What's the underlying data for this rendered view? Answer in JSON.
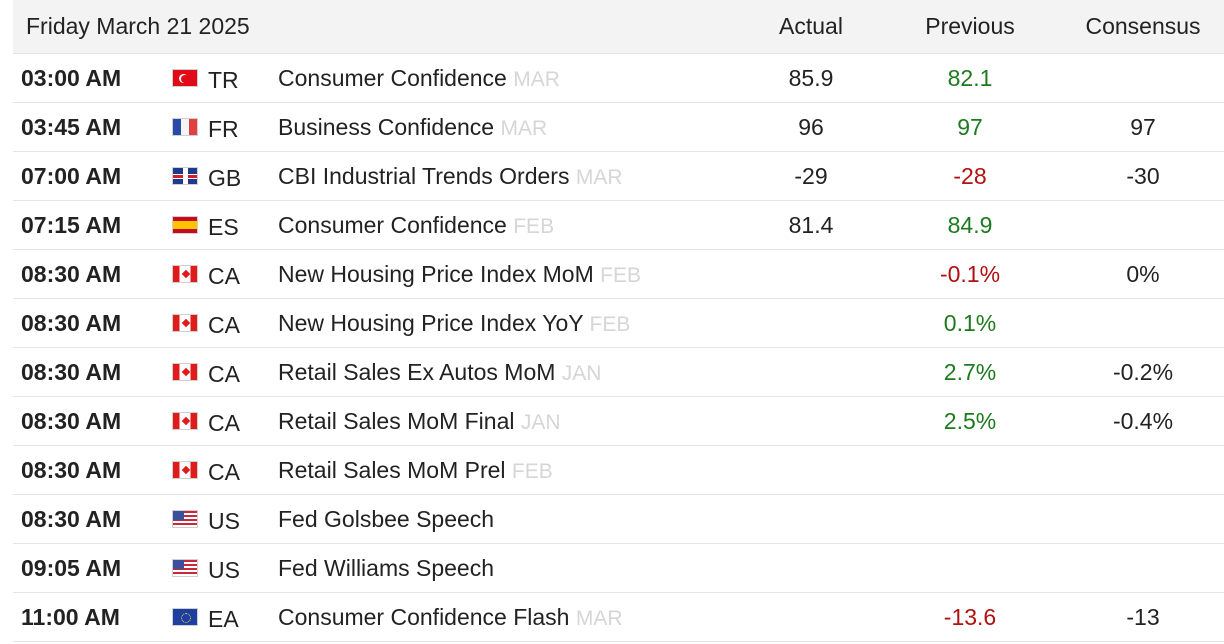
{
  "header": {
    "date": "Friday March 21 2025",
    "actual_label": "Actual",
    "previous_label": "Previous",
    "consensus_label": "Consensus"
  },
  "colors": {
    "up": "#1e7a1e",
    "down": "#b01010",
    "reference": "#d6d6d6"
  },
  "rows": [
    {
      "time": "03:00 AM",
      "flag": "turkey-flag-icon",
      "country": "TR",
      "event": "Consumer Confidence",
      "ref": "MAR",
      "actual": "85.9",
      "previous": "82.1",
      "previous_trend": "up",
      "consensus": ""
    },
    {
      "time": "03:45 AM",
      "flag": "france-flag-icon",
      "country": "FR",
      "event": "Business Confidence",
      "ref": "MAR",
      "actual": "96",
      "previous": "97",
      "previous_trend": "up",
      "consensus": "97"
    },
    {
      "time": "07:00 AM",
      "flag": "uk-flag-icon",
      "country": "GB",
      "event": "CBI Industrial Trends Orders",
      "ref": "MAR",
      "actual": "-29",
      "previous": "-28",
      "previous_trend": "down",
      "consensus": "-30"
    },
    {
      "time": "07:15 AM",
      "flag": "spain-flag-icon",
      "country": "ES",
      "event": "Consumer Confidence",
      "ref": "FEB",
      "actual": "81.4",
      "previous": "84.9",
      "previous_trend": "up",
      "consensus": ""
    },
    {
      "time": "08:30 AM",
      "flag": "canada-flag-icon",
      "country": "CA",
      "event": "New Housing Price Index MoM",
      "ref": "FEB",
      "actual": "",
      "previous": "-0.1%",
      "previous_trend": "down",
      "consensus": "0%"
    },
    {
      "time": "08:30 AM",
      "flag": "canada-flag-icon",
      "country": "CA",
      "event": "New Housing Price Index YoY",
      "ref": "FEB",
      "actual": "",
      "previous": "0.1%",
      "previous_trend": "up",
      "consensus": ""
    },
    {
      "time": "08:30 AM",
      "flag": "canada-flag-icon",
      "country": "CA",
      "event": "Retail Sales Ex Autos MoM",
      "ref": "JAN",
      "actual": "",
      "previous": "2.7%",
      "previous_trend": "up",
      "consensus": "-0.2%"
    },
    {
      "time": "08:30 AM",
      "flag": "canada-flag-icon",
      "country": "CA",
      "event": "Retail Sales MoM Final",
      "ref": "JAN",
      "actual": "",
      "previous": "2.5%",
      "previous_trend": "up",
      "consensus": "-0.4%"
    },
    {
      "time": "08:30 AM",
      "flag": "canada-flag-icon",
      "country": "CA",
      "event": "Retail Sales MoM Prel",
      "ref": "FEB",
      "actual": "",
      "previous": "",
      "previous_trend": "",
      "consensus": ""
    },
    {
      "time": "08:30 AM",
      "flag": "us-flag-icon",
      "country": "US",
      "event": "Fed Golsbee Speech",
      "ref": "",
      "actual": "",
      "previous": "",
      "previous_trend": "",
      "consensus": ""
    },
    {
      "time": "09:05 AM",
      "flag": "us-flag-icon",
      "country": "US",
      "event": "Fed Williams Speech",
      "ref": "",
      "actual": "",
      "previous": "",
      "previous_trend": "",
      "consensus": ""
    },
    {
      "time": "11:00 AM",
      "flag": "euro-area-flag-icon",
      "country": "EA",
      "event": "Consumer Confidence Flash",
      "ref": "MAR",
      "actual": "",
      "previous": "-13.6",
      "previous_trend": "down",
      "consensus": "-13"
    }
  ]
}
